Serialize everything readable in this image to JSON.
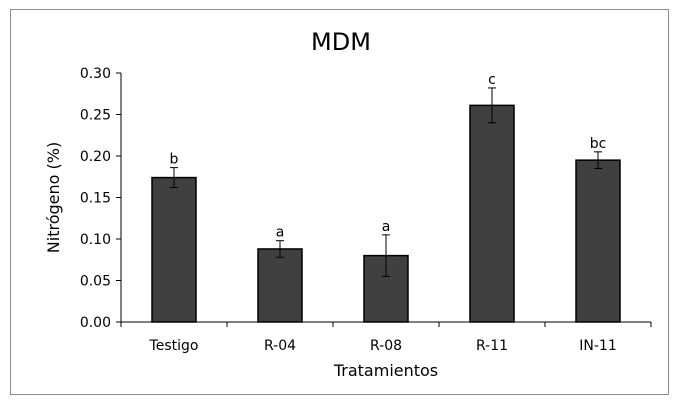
{
  "chart_data": {
    "type": "bar",
    "title": "MDM",
    "xlabel": "Tratamientos",
    "ylabel": "Nitrógeno (%)",
    "categories": [
      "Testigo",
      "R-04",
      "R-08",
      "R-11",
      "IN-11"
    ],
    "values": [
      0.174,
      0.088,
      0.08,
      0.261,
      0.195
    ],
    "errors": [
      0.012,
      0.01,
      0.025,
      0.021,
      0.01
    ],
    "significance_letters": [
      "b",
      "a",
      "a",
      "c",
      "bc"
    ],
    "ylim": [
      0,
      0.3
    ],
    "yticks": [
      "0.00",
      "0.05",
      "0.10",
      "0.15",
      "0.20",
      "0.25",
      "0.30"
    ],
    "grid": false,
    "legend": "none",
    "colors": {
      "bar_fill": "#404040",
      "bar_stroke": "#000000",
      "axis": "#000000"
    }
  }
}
